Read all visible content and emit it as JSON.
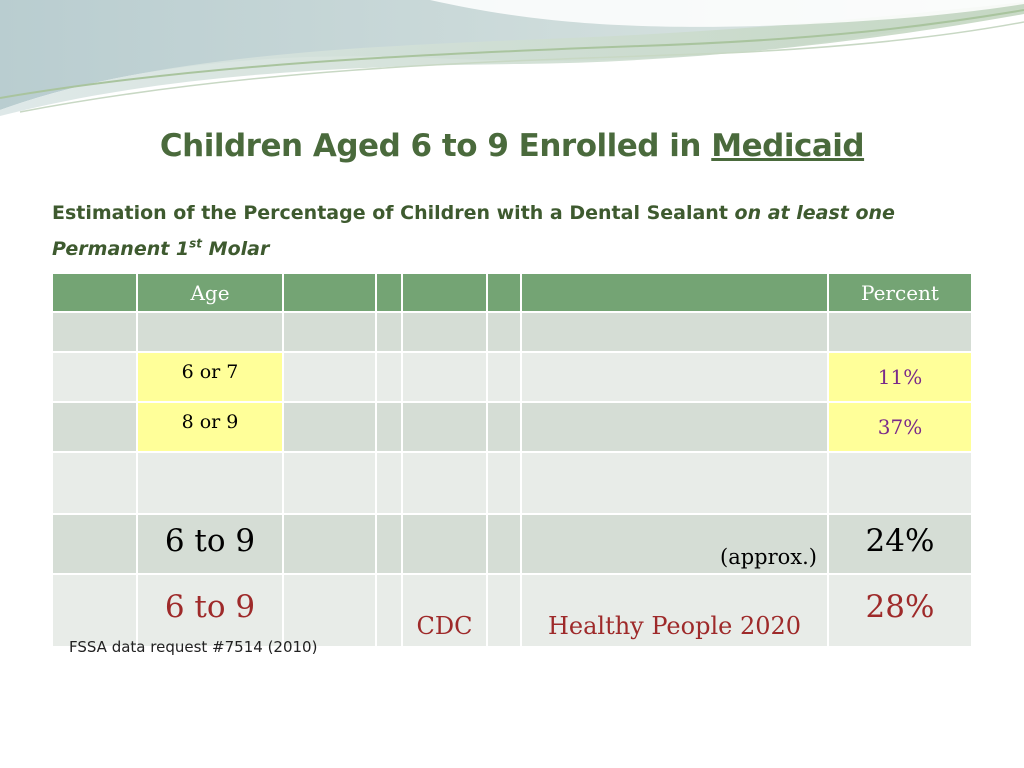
{
  "title": {
    "prefix": "Children Aged 6 to 9 Enrolled in ",
    "underlined": "Medicaid"
  },
  "subtitle": {
    "normal": "Estimation of the Percentage of Children with a Dental Sealant ",
    "italic_a": "on at least one",
    "italic_b": "Permanent 1",
    "superscript": "st",
    "italic_c": " Molar"
  },
  "table": {
    "header": {
      "age": "Age",
      "percent": "Percent"
    },
    "rows": [
      {
        "age": "6 or 7",
        "percent": "11%"
      },
      {
        "age": "8 or 9",
        "percent": "37%"
      },
      {
        "age": "6 to 9",
        "note": "(approx.)",
        "percent": "24%"
      },
      {
        "age": "6 to 9",
        "source": "CDC",
        "program": "Healthy People 2020",
        "percent": "28%"
      }
    ]
  },
  "footnote": "FSSA data request #7514 (2010)",
  "colors": {
    "header_green": "#74a474",
    "highlight_yellow": "#ffff99",
    "title_green": "#4a6a3c"
  }
}
